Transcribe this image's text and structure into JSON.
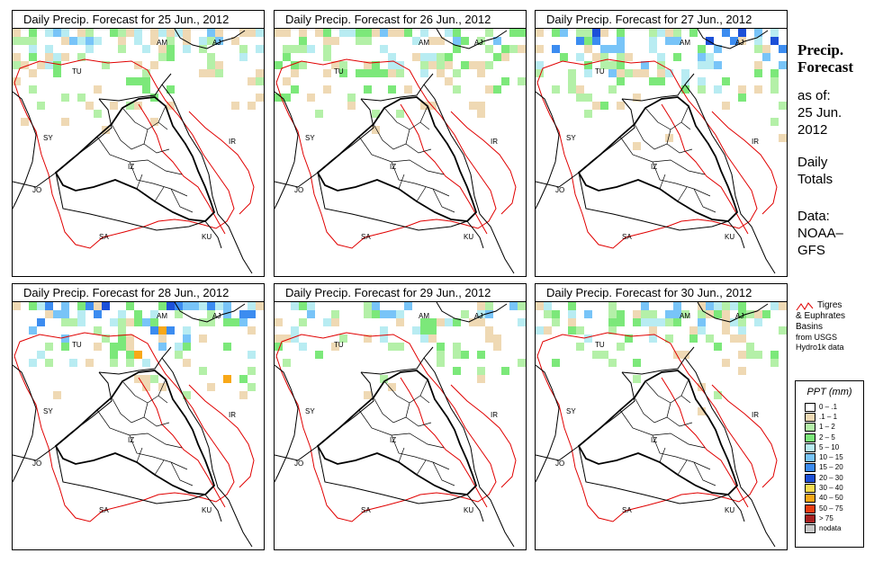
{
  "panels": [
    {
      "title_prefix": "Daily Precip. Forecast for ",
      "date": "25 Jun., 2012"
    },
    {
      "title_prefix": "Daily Precip. Forecast for ",
      "date": "26 Jun., 2012"
    },
    {
      "title_prefix": "Daily Precip. Forecast for ",
      "date": "27 Jun., 2012"
    },
    {
      "title_prefix": "Daily Precip. Forecast for ",
      "date": "28 Jun., 2012"
    },
    {
      "title_prefix": "Daily Precip. Forecast for ",
      "date": "29 Jun., 2012"
    },
    {
      "title_prefix": "Daily Precip. Forecast for ",
      "date": "30 Jun., 2012"
    }
  ],
  "map_labels": {
    "am": "AM",
    "aj": "AJ",
    "tu": "TU",
    "sy": "SY",
    "ir": "IR",
    "jo": "JO",
    "sa": "SA",
    "ku": "KU",
    "iz": "IZ"
  },
  "sidebar": {
    "title_line1": "Precip.",
    "title_line2": "Forecast",
    "asof_line1": "as of:",
    "asof_line2": "25 Jun.",
    "asof_line3": "2012",
    "totals_line1": "Daily",
    "totals_line2": "Totals",
    "data_line1": "Data:",
    "data_line2": "NOAA–",
    "data_line3": "GFS"
  },
  "basin_legend": {
    "line1": "Tigres",
    "line2": "& Euphrates",
    "line3": "Basins",
    "line4": "from USGS",
    "line5": "Hydro1k data",
    "line_color": "#e00000"
  },
  "legend": {
    "title": "PPT (mm)",
    "classes": [
      {
        "label": "0 – .1",
        "color": "#ffffff"
      },
      {
        "label": ".1 – 1",
        "color": "#efd9b4"
      },
      {
        "label": "1 – 2",
        "color": "#b4f0a8"
      },
      {
        "label": "2 – 5",
        "color": "#7ce87a"
      },
      {
        "label": "5 – 10",
        "color": "#b8ecf2"
      },
      {
        "label": "10 – 15",
        "color": "#78c4f8"
      },
      {
        "label": "15 – 20",
        "color": "#3c8cf0"
      },
      {
        "label": "20 – 30",
        "color": "#1c50d8"
      },
      {
        "label": "30 – 40",
        "color": "#f8dc50"
      },
      {
        "label": "40 – 50",
        "color": "#f8a818"
      },
      {
        "label": "50 – 75",
        "color": "#e83c10"
      },
      {
        "label": "> 75",
        "color": "#a82020"
      },
      {
        "label": "nodata",
        "color": "#c8c8c8"
      }
    ]
  }
}
